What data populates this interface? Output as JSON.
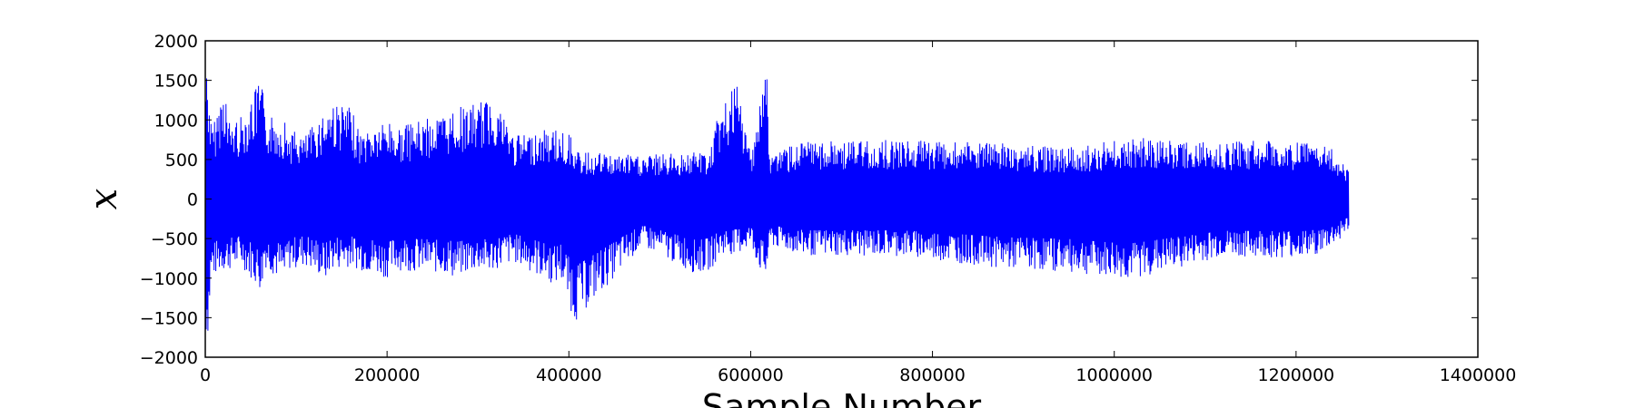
{
  "chart_data": {
    "type": "line",
    "title": "",
    "xlabel": "Sample Number",
    "ylabel": "x",
    "xlim": [
      0,
      1400000
    ],
    "ylim": [
      -2000,
      2000
    ],
    "grid": false,
    "legend": "none",
    "x_ticks": [
      0,
      200000,
      400000,
      600000,
      800000,
      1000000,
      1200000,
      1400000
    ],
    "x_tick_labels": [
      "0",
      "200000",
      "400000",
      "600000",
      "800000",
      "1000000",
      "1200000",
      "1400000"
    ],
    "y_ticks": [
      2000,
      1500,
      1000,
      500,
      0,
      -500,
      -1000,
      -1500,
      -2000
    ],
    "y_tick_labels": [
      "2000",
      "1500",
      "1000",
      "500",
      "0",
      "−500",
      "−1000",
      "−1500",
      "−2000"
    ],
    "series": [
      {
        "color": "#0000ff",
        "x": [
          0,
          2000,
          4000,
          6000,
          8000,
          20000,
          22000,
          25000,
          40000,
          60000,
          62000,
          65000,
          88000,
          90000,
          110000,
          135000,
          137000,
          160000,
          170000,
          202000,
          210000,
          270000,
          272000,
          300000,
          315000,
          317000,
          340000,
          385000,
          390000,
          405000,
          407000,
          480000,
          540000,
          555000,
          565000,
          570000,
          575000,
          580000,
          585000,
          600000,
          615000,
          618000,
          620000,
          660000,
          765000,
          880000,
          950000,
          1015000,
          1120000,
          1180000,
          1210000,
          1230000,
          1240000,
          1258000
        ],
        "min": [
          -1700,
          -1800,
          -1650,
          -1100,
          -1000,
          -900,
          -950,
          -900,
          -850,
          -1150,
          -1200,
          -850,
          -1100,
          -900,
          -850,
          -1050,
          -900,
          -850,
          -900,
          -1000,
          -900,
          -950,
          -1000,
          -900,
          -950,
          -900,
          -800,
          -1100,
          -1000,
          -1500,
          -1550,
          -600,
          -950,
          -900,
          -750,
          -700,
          -700,
          -700,
          -700,
          -600,
          -1050,
          -1000,
          -600,
          -720,
          -720,
          -880,
          -920,
          -1030,
          -730,
          -740,
          -740,
          -680,
          -600,
          -400
        ],
        "max": [
          1700,
          1750,
          1400,
          1000,
          900,
          1450,
          1480,
          1000,
          1050,
          1500,
          1550,
          1100,
          1000,
          900,
          800,
          1200,
          1250,
          1150,
          850,
          1000,
          900,
          1100,
          1150,
          1200,
          1300,
          1350,
          800,
          900,
          850,
          800,
          600,
          550,
          600,
          600,
          1100,
          1150,
          1300,
          1400,
          1420,
          600,
          1600,
          1620,
          600,
          720,
          750,
          700,
          650,
          780,
          720,
          750,
          720,
          700,
          650,
          400
        ]
      }
    ]
  }
}
